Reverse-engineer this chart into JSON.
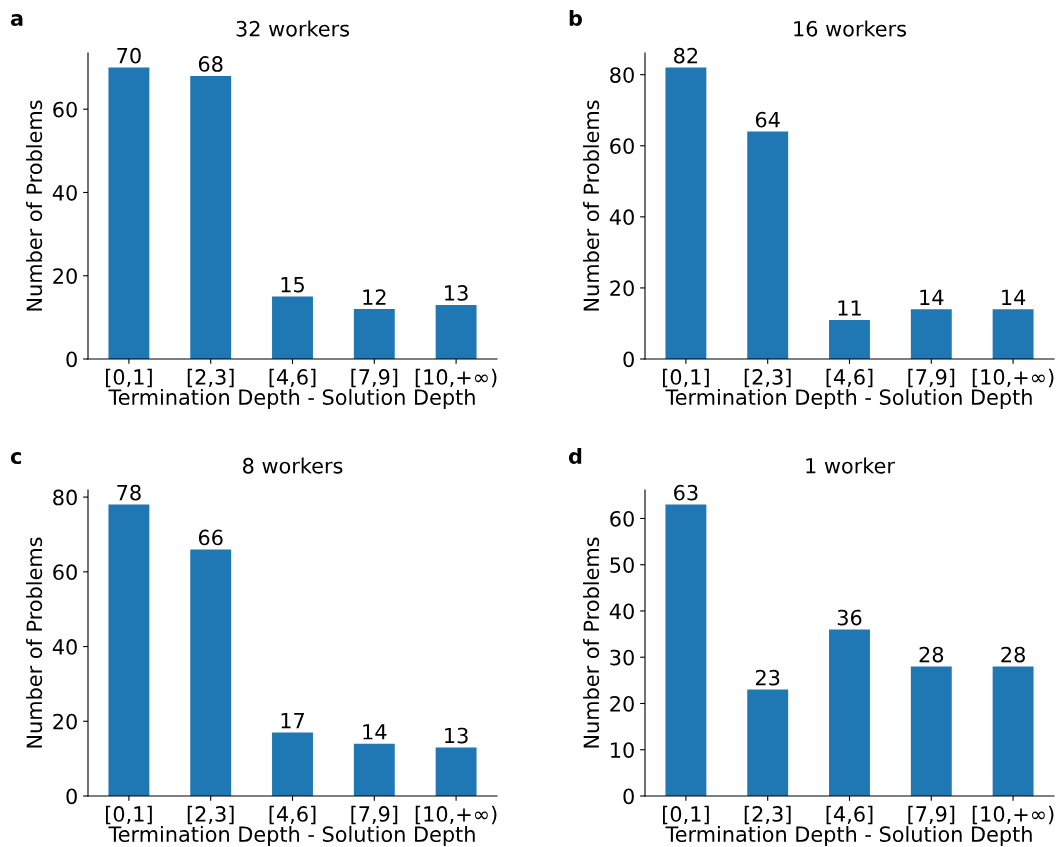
{
  "chart_data": [
    {
      "type": "bar",
      "title": "32 workers",
      "xlabel": "Termination Depth - Solution Depth",
      "ylabel": "Number of Problems",
      "annotations": [
        "a"
      ],
      "categories": [
        "[0,1]",
        "[2,3]",
        "[4,6]",
        "[7,9]",
        "[10,+∞)"
      ],
      "values": [
        70,
        68,
        15,
        12,
        13
      ],
      "color": "#1f77b4",
      "ylim": [
        0,
        73.5
      ],
      "yticks": [
        0,
        20,
        40,
        60
      ],
      "data_labels": true,
      "grid": false,
      "legend": false
    },
    {
      "type": "bar",
      "title": "16 workers",
      "xlabel": "Termination Depth - Solution Depth",
      "ylabel": "Number of Problems",
      "annotations": [
        "b"
      ],
      "categories": [
        "[0,1]",
        "[2,3]",
        "[4,6]",
        "[7,9]",
        "[10,+∞)"
      ],
      "values": [
        82,
        64,
        11,
        14,
        14
      ],
      "color": "#1f77b4",
      "ylim": [
        0,
        86.1
      ],
      "yticks": [
        0,
        20,
        40,
        60,
        80
      ],
      "data_labels": true,
      "grid": false,
      "legend": false
    },
    {
      "type": "bar",
      "title": "8 workers",
      "xlabel": "Termination Depth - Solution Depth",
      "ylabel": "Number of Problems",
      "annotations": [
        "c"
      ],
      "categories": [
        "[0,1]",
        "[2,3]",
        "[4,6]",
        "[7,9]",
        "[10,+∞)"
      ],
      "values": [
        78,
        66,
        17,
        14,
        13
      ],
      "color": "#1f77b4",
      "ylim": [
        0,
        81.9
      ],
      "yticks": [
        0,
        20,
        40,
        60,
        80
      ],
      "data_labels": true,
      "grid": false,
      "legend": false
    },
    {
      "type": "bar",
      "title": "1 worker",
      "xlabel": "Termination Depth - Solution Depth",
      "ylabel": "Number of Problems",
      "annotations": [
        "d"
      ],
      "categories": [
        "[0,1]",
        "[2,3]",
        "[4,6]",
        "[7,9]",
        "[10,+∞)"
      ],
      "values": [
        63,
        23,
        36,
        28,
        28
      ],
      "color": "#1f77b4",
      "ylim": [
        0,
        66.15
      ],
      "yticks": [
        0,
        10,
        20,
        30,
        40,
        50,
        60
      ],
      "data_labels": true,
      "grid": false,
      "legend": false
    }
  ]
}
